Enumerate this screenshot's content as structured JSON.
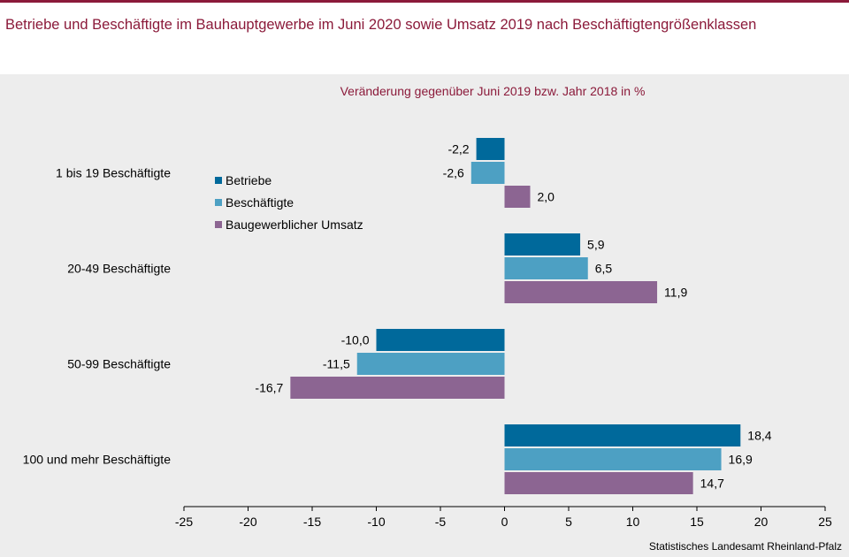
{
  "title": "Betriebe und Beschäftigte im Bauhauptgewerbe im Juni 2020 sowie Umsatz 2019 nach Beschäftigtengrößenklassen",
  "source": "Statistisches Landesamt Rheinland-Pfalz",
  "colors": {
    "accent": "#8b1a3a",
    "background": "#ededed"
  },
  "chart_data": {
    "type": "bar",
    "orientation": "horizontal",
    "subtitle": "Veränderung  gegenüber  Juni  2019 bzw.  Jahr  2018  in  %",
    "categories": [
      "1 bis 19 Beschäftigte",
      "20-49 Beschäftigte",
      "50-99 Beschäftigte",
      "100 und mehr Beschäftigte"
    ],
    "series": [
      {
        "name": "Betriebe",
        "color": "#00699b",
        "values": [
          -2.2,
          5.9,
          -10.0,
          18.4
        ],
        "labels": [
          "-2,2",
          "5,9",
          "-10,0",
          "18,4"
        ]
      },
      {
        "name": "Beschäftigte",
        "color": "#4da0c3",
        "values": [
          -2.6,
          6.5,
          -11.5,
          16.9
        ],
        "labels": [
          "-2,6",
          "6,5",
          "-11,5",
          "16,9"
        ]
      },
      {
        "name": "Baugewerblicher Umsatz",
        "color": "#8c6592",
        "values": [
          2.0,
          11.9,
          -16.7,
          14.7
        ],
        "labels": [
          "2,0",
          "11,9",
          "-16,7",
          "14,7"
        ]
      }
    ],
    "xlim": [
      -25,
      25
    ],
    "xticks": [
      -25,
      -20,
      -15,
      -10,
      -5,
      0,
      5,
      10,
      15,
      20,
      25
    ],
    "xtick_labels": [
      "-25",
      "-20",
      "-15",
      "-10",
      "-5",
      "0",
      "5",
      "10",
      "15",
      "20",
      "25"
    ],
    "legend_position": "upper-left inside plot",
    "grid": false
  }
}
